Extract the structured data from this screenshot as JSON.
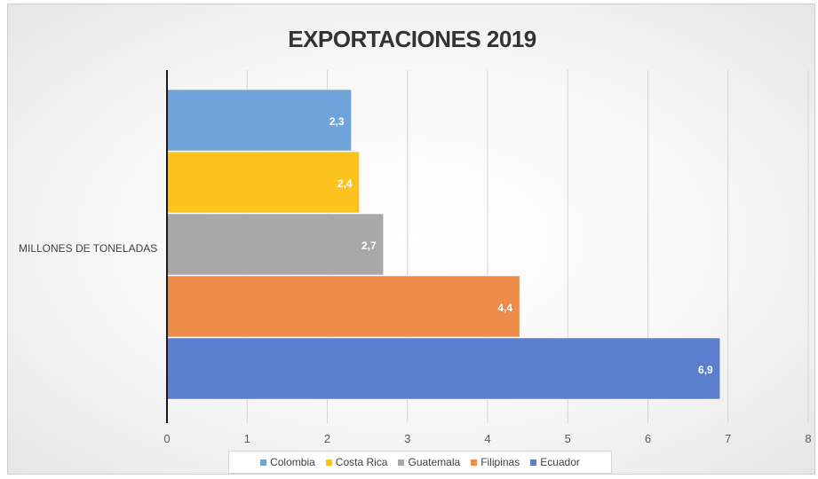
{
  "chart_data": {
    "type": "bar",
    "orientation": "horizontal",
    "title": "EXPORTACIONES 2019",
    "category": "MILLONES DE TONELADAS",
    "xlim": [
      0,
      8
    ],
    "xticks": [
      "0",
      "1",
      "2",
      "3",
      "4",
      "5",
      "6",
      "7",
      "8"
    ],
    "grid": true,
    "legend_position": "bottom",
    "series": [
      {
        "name": "Colombia",
        "value": 2.3,
        "label": "2,3",
        "color": "#6fa4da"
      },
      {
        "name": "Costa Rica",
        "value": 2.4,
        "label": "2,4",
        "color": "#fcc21e"
      },
      {
        "name": "Guatemala",
        "value": 2.7,
        "label": "2,7",
        "color": "#a8a8a8"
      },
      {
        "name": "Filipinas",
        "value": 4.4,
        "label": "4,4",
        "color": "#ed8b4a"
      },
      {
        "name": "Ecuador",
        "value": 6.9,
        "label": "6,9",
        "color": "#5b7ecf"
      }
    ]
  }
}
